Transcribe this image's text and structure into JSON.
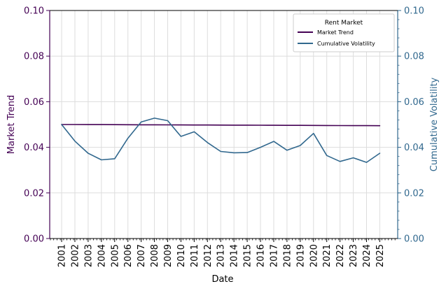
{
  "chart_data": {
    "type": "line",
    "xlabel": "Date",
    "ylabel_left": "Market Trend",
    "ylabel_right": "Cumulative Volatility",
    "ylim_left": [
      0,
      0.1
    ],
    "ylim_right": [
      0,
      0.1
    ],
    "yticks_left": [
      "0.00",
      "0.02",
      "0.04",
      "0.06",
      "0.08",
      "0.10"
    ],
    "yticks_right": [
      "0.00",
      "0.02",
      "0.04",
      "0.06",
      "0.08",
      "0.10"
    ],
    "x_tick_labels": [
      "2001",
      "2002",
      "2003",
      "2004",
      "2005",
      "2006",
      "2007",
      "2008",
      "2009",
      "2010",
      "2011",
      "2012",
      "2013",
      "2014",
      "2015",
      "2016",
      "2017",
      "2018",
      "2019",
      "2020",
      "2021",
      "2022",
      "2023",
      "2024",
      "2025"
    ],
    "x_start_year": 2001.1,
    "x_range_years": [
      2000.2,
      2026.45
    ],
    "grid": true,
    "legend": {
      "title": "Rent Market",
      "placement": "upper-right",
      "entries": [
        "Market Trend",
        "Cumulative Volatility"
      ]
    },
    "colors": {
      "left_axis": "#440154",
      "right_axis": "#31688e",
      "grid": "#dddddd"
    },
    "series": [
      {
        "name": "Market Trend",
        "axis": "left",
        "color": "#440154",
        "values": [
          0.05,
          0.04999,
          0.04998,
          0.04996,
          0.04994,
          0.04991,
          0.04989,
          0.04987,
          0.04985,
          0.04982,
          0.0498,
          0.04978,
          0.04976,
          0.04973,
          0.04971,
          0.04969,
          0.04967,
          0.04964,
          0.04962,
          0.0496,
          0.04957,
          0.04955,
          0.04952,
          0.0495,
          0.04948
        ]
      },
      {
        "name": "Cumulative Volatility",
        "axis": "right",
        "color": "#31688e",
        "values": [
          0.05,
          0.0427,
          0.0374,
          0.0345,
          0.035,
          0.044,
          0.0511,
          0.0528,
          0.0517,
          0.0448,
          0.0468,
          0.0421,
          0.0382,
          0.0376,
          0.0377,
          0.04,
          0.0426,
          0.0387,
          0.0408,
          0.0461,
          0.0364,
          0.0338,
          0.0354,
          0.0334,
          0.0374
        ]
      }
    ]
  }
}
